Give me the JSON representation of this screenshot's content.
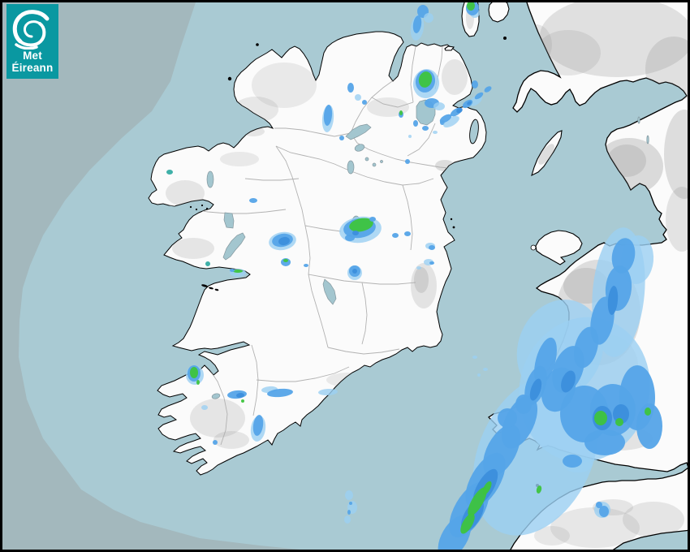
{
  "logo": {
    "line1": "Met",
    "line2": "Éireann",
    "bg": "#0a98a1",
    "text_color": "#ffffff",
    "icon": "swirl-icon"
  },
  "map": {
    "colors": {
      "sea_inner": "#a9cad3",
      "sea_outer": "#a3b8bd",
      "land": "#fbfbfb",
      "coast": "#000000",
      "county": "#aeaeae",
      "lake_fill": "#a3c6cf",
      "lake_stroke": "#84979e",
      "relief": "#8f8f8f",
      "frame": "#000000"
    }
  },
  "radar": {
    "palette": {
      "light": "#9bd0f2",
      "moderate": "#55a4e8",
      "heavy": "#3c8edc",
      "intense": "#3ec43e",
      "clutter": "#2aa79f"
    },
    "cells": [
      [
        "light",
        514,
        34,
        8,
        16,
        8
      ],
      [
        "moderate",
        514,
        30,
        5,
        11,
        8
      ],
      [
        "moderate",
        521,
        14,
        7,
        8,
        0
      ],
      [
        "light",
        528,
        22,
        6,
        6,
        0
      ],
      [
        "light",
        525,
        103,
        16,
        18,
        10
      ],
      [
        "moderate",
        524,
        100,
        12,
        14,
        12
      ],
      [
        "intense",
        524,
        98,
        8,
        10,
        15
      ],
      [
        "moderate",
        532,
        127,
        9,
        6,
        0
      ],
      [
        "light",
        541,
        131,
        7,
        5,
        0
      ],
      [
        "moderate",
        512,
        152,
        3,
        4,
        0
      ],
      [
        "moderate",
        524,
        158,
        4,
        3,
        0
      ],
      [
        "moderate",
        545,
        151,
        3,
        3,
        0
      ],
      [
        "light",
        536,
        163,
        3,
        2,
        0
      ],
      [
        "light",
        505,
        168,
        2,
        2,
        0
      ],
      [
        "moderate",
        502,
        199,
        3,
        3,
        0
      ],
      [
        "light",
        585,
        16,
        6,
        6,
        0
      ],
      [
        "moderate",
        582,
        10,
        8,
        9,
        0
      ],
      [
        "intense",
        580,
        7,
        5,
        6,
        0
      ],
      [
        "light",
        556,
        150,
        11,
        5,
        -30
      ],
      [
        "light",
        586,
        124,
        9,
        5,
        -35
      ],
      [
        "moderate",
        549,
        146,
        8,
        4,
        -30
      ],
      [
        "moderate",
        562,
        138,
        8,
        4,
        -32
      ],
      [
        "moderate",
        576,
        128,
        7,
        4,
        -35
      ],
      [
        "moderate",
        590,
        118,
        6,
        3,
        -35
      ],
      [
        "moderate",
        601,
        110,
        5,
        3,
        -35
      ],
      [
        "heavy",
        566,
        136,
        4,
        3,
        -30
      ],
      [
        "heavy",
        578,
        127,
        3,
        2,
        -35
      ],
      [
        "moderate",
        494,
        141,
        3,
        4,
        0
      ],
      [
        "intense",
        494,
        139,
        2,
        3,
        0
      ],
      [
        "moderate",
        585,
        104,
        4,
        5,
        0
      ],
      [
        "light",
        404,
        146,
        7,
        17,
        5
      ],
      [
        "moderate",
        404,
        142,
        5,
        13,
        5
      ],
      [
        "moderate",
        432,
        108,
        4,
        6,
        0
      ],
      [
        "light",
        441,
        120,
        4,
        4,
        0
      ],
      [
        "moderate",
        449,
        126,
        3,
        3,
        0
      ],
      [
        "moderate",
        421,
        170,
        3,
        3,
        0
      ],
      [
        "light",
        348,
        297,
        17,
        11,
        -10
      ],
      [
        "moderate",
        348,
        296,
        13,
        8,
        -10
      ],
      [
        "heavy",
        350,
        297,
        7,
        5,
        -10
      ],
      [
        "moderate",
        312,
        247,
        5,
        3,
        0
      ],
      [
        "light",
        444,
        283,
        26,
        16,
        -8
      ],
      [
        "moderate",
        443,
        281,
        20,
        12,
        -8
      ],
      [
        "intense",
        445,
        277,
        15,
        8,
        -12
      ],
      [
        "moderate",
        431,
        293,
        6,
        4,
        0
      ],
      [
        "heavy",
        438,
        287,
        4,
        3,
        0
      ],
      [
        "moderate",
        459,
        270,
        4,
        3,
        0
      ],
      [
        "moderate",
        487,
        290,
        4,
        3,
        0
      ],
      [
        "light",
        437,
        336,
        9,
        9,
        0
      ],
      [
        "moderate",
        437,
        334,
        7,
        7,
        0
      ],
      [
        "heavy",
        437,
        334,
        3,
        3,
        0
      ],
      [
        "moderate",
        352,
        323,
        6,
        5,
        0
      ],
      [
        "intense",
        352,
        321,
        3,
        2,
        0
      ],
      [
        "moderate",
        377,
        327,
        3,
        2,
        0
      ],
      [
        "light",
        293,
        336,
        10,
        5,
        0
      ],
      [
        "intense",
        293,
        334,
        6,
        2,
        0
      ],
      [
        "moderate",
        286,
        333,
        3,
        2,
        0
      ],
      [
        "clutter",
        209,
        212,
        4,
        3,
        0
      ],
      [
        "clutter",
        256,
        325,
        3,
        3,
        0
      ],
      [
        "light",
        240,
        462,
        11,
        12,
        0
      ],
      [
        "moderate",
        239,
        460,
        8,
        10,
        0
      ],
      [
        "intense",
        239,
        459,
        5,
        7,
        0
      ],
      [
        "intense",
        244,
        471,
        2,
        3,
        0
      ],
      [
        "light",
        332,
        480,
        10,
        4,
        -5
      ],
      [
        "moderate",
        292,
        486,
        12,
        5,
        -5
      ],
      [
        "heavy",
        296,
        487,
        5,
        3,
        -5
      ],
      [
        "intense",
        299,
        494,
        2,
        2,
        0
      ],
      [
        "moderate",
        345,
        484,
        16,
        5,
        -5
      ],
      [
        "light",
        404,
        483,
        12,
        4,
        -3
      ],
      [
        "light",
        318,
        528,
        9,
        16,
        8
      ],
      [
        "moderate",
        318,
        524,
        6,
        13,
        8
      ],
      [
        "moderate",
        265,
        545,
        3,
        3,
        0
      ],
      [
        "light",
        252,
        502,
        4,
        3,
        0
      ],
      [
        "moderate",
        502,
        288,
        4,
        3,
        0
      ],
      [
        "light",
        530,
        303,
        6,
        4,
        0
      ],
      [
        "moderate",
        532,
        305,
        4,
        3,
        0
      ],
      [
        "light",
        528,
        323,
        6,
        4,
        0
      ],
      [
        "moderate",
        532,
        324,
        3,
        2,
        0
      ],
      [
        "light",
        516,
        330,
        3,
        2,
        0
      ],
      [
        "light",
        430,
        610,
        5,
        6,
        0
      ],
      [
        "light",
        434,
        625,
        6,
        8,
        0
      ],
      [
        "light",
        428,
        640,
        4,
        5,
        0
      ],
      [
        "moderate",
        432,
        620,
        2,
        2,
        0
      ],
      [
        "moderate",
        430,
        631,
        2,
        3,
        0
      ],
      [
        "light",
        585,
        440,
        3,
        2,
        0
      ],
      [
        "light",
        598,
        455,
        3,
        2,
        0
      ],
      [
        "light",
        590,
        462,
        2,
        2,
        0
      ],
      [
        "light",
        660,
        560,
        70,
        105,
        25
      ],
      [
        "light",
        720,
        480,
        80,
        90,
        15
      ],
      [
        "light",
        762,
        360,
        32,
        80,
        5
      ],
      [
        "light",
        690,
        430,
        52,
        62,
        20
      ],
      [
        "light",
        785,
        320,
        20,
        30,
        5
      ],
      [
        "moderate",
        768,
        315,
        14,
        22,
        10
      ],
      [
        "moderate",
        762,
        355,
        16,
        28,
        5
      ],
      [
        "moderate",
        742,
        395,
        14,
        30,
        10
      ],
      [
        "moderate",
        722,
        428,
        14,
        26,
        15
      ],
      [
        "moderate",
        700,
        455,
        18,
        30,
        20
      ],
      [
        "moderate",
        688,
        480,
        20,
        28,
        20
      ],
      [
        "moderate",
        672,
        445,
        12,
        30,
        15
      ],
      [
        "moderate",
        660,
        475,
        12,
        25,
        18
      ],
      [
        "moderate",
        640,
        520,
        18,
        35,
        25
      ],
      [
        "moderate",
        618,
        555,
        18,
        35,
        28
      ],
      [
        "moderate",
        598,
        592,
        18,
        38,
        30
      ],
      [
        "moderate",
        578,
        628,
        18,
        38,
        30
      ],
      [
        "moderate",
        560,
        662,
        16,
        30,
        30
      ],
      [
        "moderate",
        720,
        510,
        30,
        35,
        0
      ],
      [
        "moderate",
        755,
        505,
        28,
        32,
        0
      ],
      [
        "moderate",
        785,
        490,
        22,
        40,
        0
      ],
      [
        "moderate",
        800,
        525,
        16,
        28,
        0
      ],
      [
        "moderate",
        745,
        545,
        25,
        16,
        0
      ],
      [
        "moderate",
        625,
        515,
        12,
        12,
        0
      ],
      [
        "moderate",
        645,
        498,
        10,
        12,
        0
      ],
      [
        "light",
        712,
        572,
        18,
        10,
        0
      ],
      [
        "moderate",
        705,
        568,
        12,
        8,
        0
      ],
      [
        "light",
        742,
        628,
        10,
        10,
        0
      ],
      [
        "moderate",
        744,
        630,
        6,
        7,
        0
      ],
      [
        "moderate",
        738,
        622,
        4,
        4,
        0
      ],
      [
        "heavy",
        598,
        600,
        10,
        25,
        30
      ],
      [
        "heavy",
        582,
        635,
        10,
        22,
        30
      ],
      [
        "heavy",
        742,
        515,
        12,
        15,
        0
      ],
      [
        "heavy",
        765,
        510,
        10,
        12,
        0
      ],
      [
        "heavy",
        700,
        470,
        8,
        14,
        20
      ],
      [
        "heavy",
        660,
        480,
        6,
        14,
        18
      ],
      [
        "heavy",
        755,
        370,
        6,
        18,
        5
      ],
      [
        "intense",
        588,
        618,
        7,
        20,
        30
      ],
      [
        "intense",
        576,
        645,
        6,
        14,
        30
      ],
      [
        "intense",
        600,
        601,
        4,
        9,
        28
      ],
      [
        "intense",
        740,
        515,
        8,
        9,
        0
      ],
      [
        "intense",
        763,
        520,
        5,
        5,
        0
      ],
      [
        "intense",
        798,
        507,
        4,
        5,
        0
      ],
      [
        "intense",
        664,
        603,
        3,
        5,
        15
      ]
    ]
  }
}
